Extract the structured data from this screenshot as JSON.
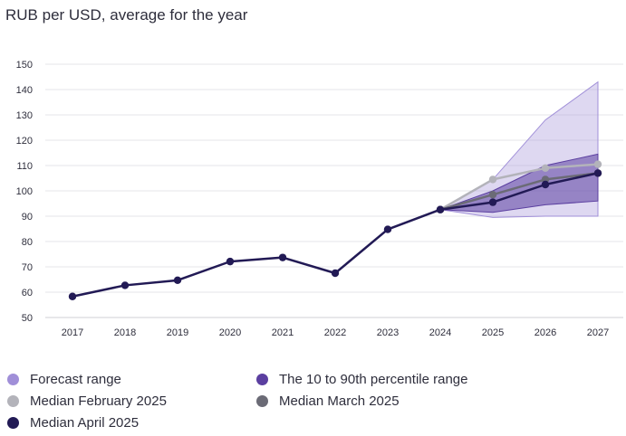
{
  "chart_data": {
    "type": "line",
    "title": "RUB per USD, average for the year",
    "xlabel": "",
    "ylabel": "",
    "ylim": [
      50,
      150
    ],
    "yticks": [
      50,
      60,
      70,
      80,
      90,
      100,
      110,
      120,
      130,
      140,
      150
    ],
    "categories": [
      "2017",
      "2018",
      "2019",
      "2020",
      "2021",
      "2022",
      "2023",
      "2024",
      "2025",
      "2026",
      "2027"
    ],
    "grid": "horizontal",
    "legend_position": "bottom",
    "bands": [
      {
        "name": "Forecast range",
        "color": "#a08fd8",
        "x": [
          "2024",
          "2025",
          "2026",
          "2027"
        ],
        "upper": [
          92.6,
          104.5,
          128.0,
          143.0
        ],
        "lower": [
          92.6,
          89.5,
          90.0,
          90.0
        ]
      },
      {
        "name": "The 10 to 90th percentile range",
        "color": "#5b3fa0",
        "x": [
          "2024",
          "2025",
          "2026",
          "2027"
        ],
        "upper": [
          92.6,
          100.0,
          110.0,
          114.5
        ],
        "lower": [
          92.6,
          91.5,
          94.5,
          96.0
        ]
      }
    ],
    "series": [
      {
        "name": "Median February 2025",
        "color": "#b3b3ba",
        "x": [
          "2024",
          "2025",
          "2026",
          "2027"
        ],
        "values": [
          92.6,
          104.5,
          109.0,
          110.5
        ]
      },
      {
        "name": "Median March 2025",
        "color": "#6b6b76",
        "x": [
          "2024",
          "2025",
          "2026",
          "2027"
        ],
        "values": [
          92.6,
          98.5,
          104.5,
          107.0
        ]
      },
      {
        "name": "Median April 2025",
        "color": "#221a55",
        "x": [
          "2017",
          "2018",
          "2019",
          "2020",
          "2021",
          "2022",
          "2023",
          "2024",
          "2025",
          "2026",
          "2027"
        ],
        "values": [
          58.3,
          62.7,
          64.7,
          72.1,
          73.7,
          67.5,
          84.8,
          92.6,
          95.5,
          102.5,
          107.0
        ]
      }
    ]
  },
  "legend": [
    {
      "label": "Forecast range",
      "color": "#a08fd8"
    },
    {
      "label": "The 10 to 90th percentile range",
      "color": "#5b3fa0"
    },
    {
      "label": "Median February 2025",
      "color": "#b3b3ba"
    },
    {
      "label": "Median March 2025",
      "color": "#6b6b76"
    },
    {
      "label": "Median April 2025",
      "color": "#221a55"
    }
  ]
}
